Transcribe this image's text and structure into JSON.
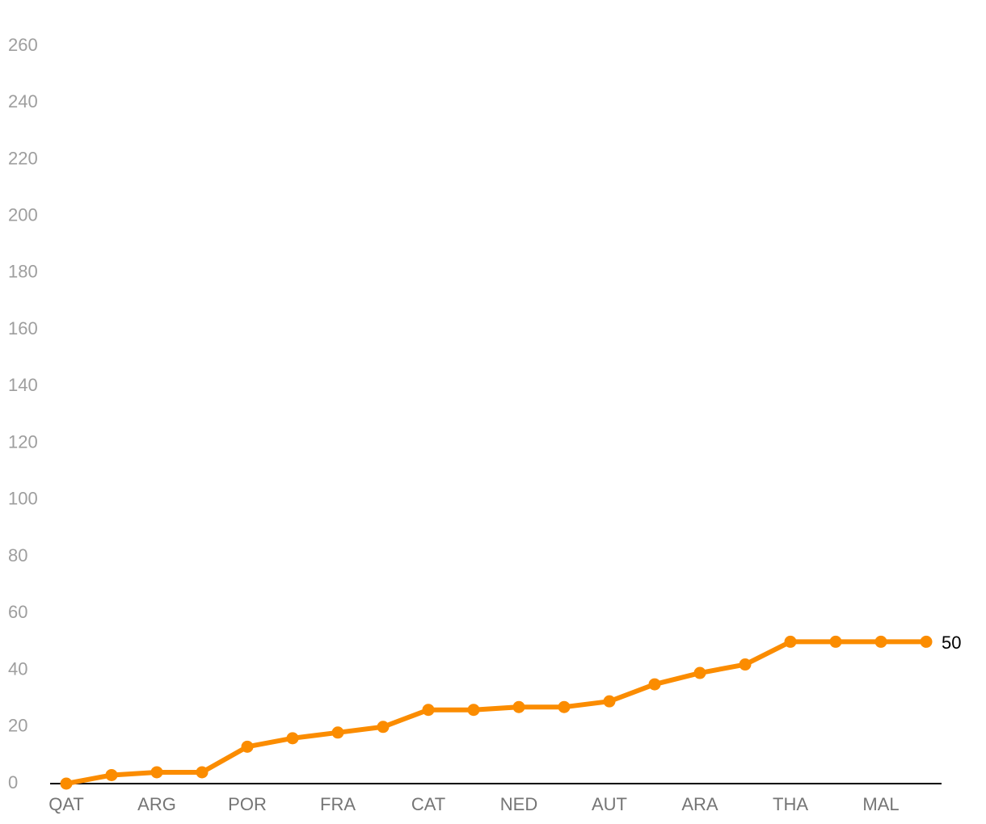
{
  "chart_data": {
    "type": "line",
    "categories": [
      "QAT",
      null,
      "ARG",
      null,
      "POR",
      null,
      "FRA",
      null,
      "CAT",
      null,
      "NED",
      null,
      "AUT",
      null,
      "ARA",
      null,
      "THA",
      null,
      "MAL",
      null
    ],
    "series": [
      {
        "color": "#fb8c00",
        "values": [
          0,
          3,
          4,
          4,
          13,
          16,
          18,
          20,
          26,
          26,
          27,
          27,
          29,
          35,
          39,
          42,
          50,
          50,
          50,
          50
        ]
      }
    ],
    "ylim": [
      0,
      260
    ],
    "yticks": [
      0,
      20,
      40,
      60,
      80,
      100,
      120,
      140,
      160,
      180,
      200,
      220,
      240,
      260
    ]
  }
}
